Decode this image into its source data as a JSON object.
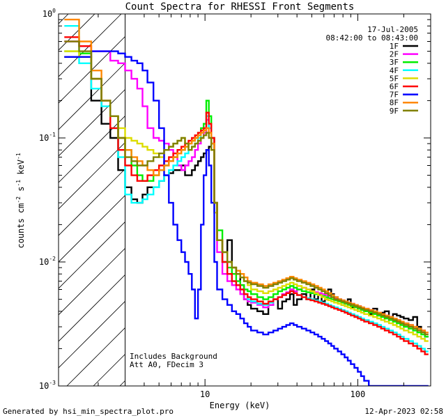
{
  "chart_data": {
    "type": "line",
    "title": "Count Spectra for RHESSI Front Segments",
    "xlabel": "Energy (keV)",
    "ylabel_parts": [
      "counts cm",
      "-2",
      " s",
      "-1",
      " keV",
      "-1"
    ],
    "x_scale": "log",
    "y_scale": "log",
    "xlim": [
      1.1,
      300
    ],
    "ylim": [
      0.001,
      1.0
    ],
    "x_tick_labels": [
      {
        "v": 10,
        "label": "10"
      },
      {
        "v": 100,
        "label": "100"
      }
    ],
    "y_tick_labels": [
      {
        "v": 1.0,
        "base": "10",
        "exp": "0"
      },
      {
        "v": 0.1,
        "base": "10",
        "exp": "-1"
      },
      {
        "v": 0.01,
        "base": "10",
        "exp": "-2"
      },
      {
        "v": 0.001,
        "base": "10",
        "exp": "-3"
      }
    ],
    "hatch_until_kev": 3.0,
    "date": "17-Jul-2005",
    "time_range": "08:42:00 to 08:43:00",
    "annotations": [
      "Includes Background",
      "Att A0, FDecim 3"
    ],
    "energy_bins": [
      1.2,
      1.5,
      1.8,
      2.1,
      2.4,
      2.7,
      3.0,
      3.3,
      3.6,
      3.9,
      4.2,
      4.6,
      5.0,
      5.4,
      5.8,
      6.2,
      6.6,
      7.0,
      7.4,
      7.8,
      8.2,
      8.6,
      9.0,
      9.4,
      9.8,
      10.2,
      10.6,
      11.0,
      11.5,
      12.0,
      13,
      14,
      15,
      16,
      17,
      18,
      19,
      20,
      22,
      24,
      26,
      28,
      30,
      32,
      34,
      36,
      38,
      40,
      43,
      46,
      49,
      52,
      55,
      58,
      61,
      64,
      67,
      70,
      74,
      78,
      82,
      86,
      90,
      95,
      100,
      105,
      110,
      118,
      126,
      134,
      142,
      150,
      160,
      170,
      180,
      190,
      200,
      215,
      230,
      245,
      260,
      275,
      290
    ],
    "series": [
      {
        "name": "1F",
        "color": "#000000",
        "values": [
          0.45,
          0.45,
          0.2,
          0.13,
          0.1,
          0.055,
          0.04,
          0.032,
          0.03,
          0.035,
          0.04,
          0.04,
          0.045,
          0.05,
          0.052,
          0.055,
          0.055,
          0.06,
          0.05,
          0.05,
          0.055,
          0.06,
          0.065,
          0.07,
          0.075,
          0.08,
          0.085,
          0.09,
          0.03,
          0.015,
          0.01,
          0.015,
          0.009,
          0.008,
          0.0065,
          0.005,
          0.0045,
          0.0042,
          0.004,
          0.0038,
          0.0045,
          0.005,
          0.0042,
          0.0048,
          0.005,
          0.0055,
          0.0045,
          0.005,
          0.0055,
          0.005,
          0.006,
          0.005,
          0.0055,
          0.0048,
          0.005,
          0.006,
          0.0055,
          0.0052,
          0.005,
          0.0045,
          0.0048,
          0.005,
          0.0043,
          0.0045,
          0.004,
          0.0042,
          0.004,
          0.0038,
          0.0042,
          0.0037,
          0.0039,
          0.004,
          0.0036,
          0.0038,
          0.0037,
          0.0036,
          0.0035,
          0.0034,
          0.0036,
          0.003,
          0.0028,
          0.0025,
          0.0022
        ]
      },
      {
        "name": "2F",
        "color": "#ff00ff",
        "values": [
          0.6,
          0.55,
          0.5,
          0.5,
          0.42,
          0.4,
          0.35,
          0.3,
          0.25,
          0.18,
          0.12,
          0.1,
          0.095,
          0.09,
          0.08,
          0.07,
          0.06,
          0.055,
          0.06,
          0.065,
          0.07,
          0.08,
          0.09,
          0.1,
          0.11,
          0.14,
          0.12,
          0.1,
          0.025,
          0.012,
          0.008,
          0.007,
          0.0065,
          0.006,
          0.0055,
          0.005,
          0.0048,
          0.0047,
          0.0045,
          0.0043,
          0.0045,
          0.005,
          0.0052,
          0.0055,
          0.0057,
          0.006,
          0.0058,
          0.006,
          0.0062,
          0.006,
          0.0058,
          0.0057,
          0.0056,
          0.0055,
          0.0054,
          0.0053,
          0.0052,
          0.0051,
          0.005,
          0.0049,
          0.0048,
          0.0047,
          0.0046,
          0.0045,
          0.0044,
          0.0043,
          0.0042,
          0.0041,
          0.004,
          0.0039,
          0.0038,
          0.0037,
          0.0036,
          0.0035,
          0.0034,
          0.0033,
          0.0032,
          0.0031,
          0.003,
          0.0029,
          0.0028,
          0.0027,
          0.0026
        ]
      },
      {
        "name": "3F",
        "color": "#00ee00",
        "values": [
          0.5,
          0.48,
          0.3,
          0.2,
          0.15,
          0.1,
          0.08,
          0.06,
          0.05,
          0.045,
          0.045,
          0.05,
          0.055,
          0.06,
          0.065,
          0.07,
          0.075,
          0.08,
          0.085,
          0.09,
          0.095,
          0.1,
          0.11,
          0.12,
          0.13,
          0.2,
          0.15,
          0.1,
          0.03,
          0.018,
          0.012,
          0.009,
          0.008,
          0.007,
          0.0065,
          0.006,
          0.0058,
          0.0055,
          0.0052,
          0.005,
          0.0052,
          0.0055,
          0.0058,
          0.006,
          0.0062,
          0.0064,
          0.0062,
          0.006,
          0.0058,
          0.0057,
          0.0056,
          0.0055,
          0.0054,
          0.0053,
          0.0052,
          0.0051,
          0.005,
          0.0049,
          0.0048,
          0.0047,
          0.0046,
          0.0045,
          0.0044,
          0.0043,
          0.0042,
          0.0041,
          0.004,
          0.0039,
          0.0038,
          0.0037,
          0.0036,
          0.0035,
          0.0034,
          0.0033,
          0.0032,
          0.0031,
          0.003,
          0.0029,
          0.0028,
          0.0027,
          0.0026,
          0.0025,
          0.0024
        ]
      },
      {
        "name": "4F",
        "color": "#00ffff",
        "values": [
          0.8,
          0.4,
          0.25,
          0.18,
          0.12,
          0.07,
          0.035,
          0.03,
          0.03,
          0.032,
          0.035,
          0.04,
          0.045,
          0.05,
          0.055,
          0.06,
          0.065,
          0.07,
          0.075,
          0.08,
          0.085,
          0.09,
          0.1,
          0.11,
          0.12,
          0.15,
          0.12,
          0.09,
          0.025,
          0.015,
          0.01,
          0.008,
          0.007,
          0.0065,
          0.006,
          0.0055,
          0.005,
          0.0048,
          0.0046,
          0.0045,
          0.0047,
          0.005,
          0.0052,
          0.0054,
          0.0056,
          0.0058,
          0.0056,
          0.0054,
          0.0052,
          0.0051,
          0.005,
          0.0049,
          0.0048,
          0.0047,
          0.0046,
          0.0045,
          0.0044,
          0.0043,
          0.0042,
          0.0041,
          0.004,
          0.0039,
          0.0038,
          0.0037,
          0.0036,
          0.0035,
          0.0034,
          0.0033,
          0.0032,
          0.0031,
          0.003,
          0.0029,
          0.0028,
          0.0027,
          0.0026,
          0.0025,
          0.0024,
          0.0023,
          0.0022,
          0.0021,
          0.002,
          0.0019,
          0.0018
        ]
      },
      {
        "name": "5F",
        "color": "#dddd00",
        "values": [
          0.5,
          0.45,
          0.3,
          0.2,
          0.15,
          0.12,
          0.1,
          0.095,
          0.09,
          0.085,
          0.08,
          0.075,
          0.07,
          0.08,
          0.085,
          0.09,
          0.095,
          0.1,
          0.09,
          0.08,
          0.085,
          0.09,
          0.095,
          0.1,
          0.105,
          0.11,
          0.1,
          0.08,
          0.025,
          0.015,
          0.012,
          0.01,
          0.009,
          0.008,
          0.0075,
          0.007,
          0.0065,
          0.006,
          0.0058,
          0.0056,
          0.0058,
          0.006,
          0.0062,
          0.0064,
          0.0066,
          0.0068,
          0.0066,
          0.0064,
          0.0062,
          0.006,
          0.0058,
          0.0056,
          0.0054,
          0.0052,
          0.005,
          0.0049,
          0.0048,
          0.0047,
          0.0046,
          0.0045,
          0.0044,
          0.0043,
          0.0042,
          0.0041,
          0.004,
          0.0039,
          0.0038,
          0.0037,
          0.0036,
          0.0035,
          0.0034,
          0.0033,
          0.0032,
          0.0031,
          0.003,
          0.0029,
          0.0028,
          0.0027,
          0.0026,
          0.0025,
          0.0024,
          0.0023,
          0.0022
        ]
      },
      {
        "name": "6F",
        "color": "#ff0000",
        "values": [
          0.65,
          0.55,
          0.3,
          0.2,
          0.12,
          0.08,
          0.06,
          0.05,
          0.045,
          0.045,
          0.05,
          0.055,
          0.06,
          0.065,
          0.07,
          0.075,
          0.08,
          0.085,
          0.09,
          0.095,
          0.1,
          0.105,
          0.11,
          0.115,
          0.12,
          0.16,
          0.13,
          0.1,
          0.03,
          0.015,
          0.01,
          0.008,
          0.007,
          0.0065,
          0.006,
          0.0055,
          0.0052,
          0.005,
          0.0048,
          0.0046,
          0.0048,
          0.005,
          0.0052,
          0.0054,
          0.0056,
          0.0058,
          0.0056,
          0.0054,
          0.0052,
          0.005,
          0.0049,
          0.0048,
          0.0047,
          0.0046,
          0.0045,
          0.0044,
          0.0043,
          0.0042,
          0.0041,
          0.004,
          0.0039,
          0.0038,
          0.0037,
          0.0036,
          0.0035,
          0.0034,
          0.0033,
          0.0032,
          0.0031,
          0.003,
          0.0029,
          0.0028,
          0.0027,
          0.0026,
          0.0025,
          0.0024,
          0.0023,
          0.0022,
          0.0021,
          0.002,
          0.0019,
          0.0018,
          0.0017
        ]
      },
      {
        "name": "7F",
        "color": "#0000ff",
        "values": [
          0.45,
          0.45,
          0.5,
          0.5,
          0.5,
          0.48,
          0.45,
          0.42,
          0.4,
          0.35,
          0.28,
          0.2,
          0.12,
          0.05,
          0.03,
          0.02,
          0.015,
          0.012,
          0.01,
          0.008,
          0.006,
          0.0035,
          0.006,
          0.02,
          0.05,
          0.08,
          0.06,
          0.03,
          0.01,
          0.006,
          0.005,
          0.0045,
          0.004,
          0.0038,
          0.0035,
          0.0032,
          0.003,
          0.0028,
          0.0027,
          0.0026,
          0.0027,
          0.0028,
          0.0029,
          0.003,
          0.0031,
          0.0032,
          0.0031,
          0.003,
          0.0029,
          0.0028,
          0.0027,
          0.0026,
          0.0025,
          0.0024,
          0.0023,
          0.0022,
          0.0021,
          0.002,
          0.0019,
          0.0018,
          0.0017,
          0.0016,
          0.0015,
          0.0014,
          0.0013,
          0.0012,
          0.0011,
          0.001,
          0.001,
          0.001,
          0.001,
          0.001,
          0.001,
          0.001,
          0.001,
          0.001,
          0.001,
          0.001,
          0.001,
          0.001,
          0.001,
          0.001,
          0.001
        ]
      },
      {
        "name": "8F",
        "color": "#ff8800",
        "values": [
          0.9,
          0.6,
          0.35,
          0.2,
          0.15,
          0.1,
          0.08,
          0.07,
          0.065,
          0.06,
          0.055,
          0.05,
          0.055,
          0.06,
          0.065,
          0.07,
          0.075,
          0.08,
          0.085,
          0.09,
          0.095,
          0.1,
          0.105,
          0.11,
          0.115,
          0.12,
          0.11,
          0.09,
          0.03,
          0.015,
          0.012,
          0.01,
          0.009,
          0.0085,
          0.008,
          0.0075,
          0.007,
          0.0068,
          0.0066,
          0.0064,
          0.0066,
          0.0068,
          0.007,
          0.0072,
          0.0074,
          0.0076,
          0.0074,
          0.0072,
          0.007,
          0.0068,
          0.0066,
          0.0064,
          0.0062,
          0.006,
          0.0058,
          0.0056,
          0.0054,
          0.0052,
          0.005,
          0.0049,
          0.0048,
          0.0047,
          0.0046,
          0.0045,
          0.0044,
          0.0043,
          0.0042,
          0.0041,
          0.004,
          0.0039,
          0.0038,
          0.0037,
          0.0036,
          0.0035,
          0.0034,
          0.0033,
          0.0032,
          0.0031,
          0.003,
          0.0029,
          0.0028,
          0.0027,
          0.0026
        ]
      },
      {
        "name": "9F",
        "color": "#808000",
        "values": [
          0.6,
          0.5,
          0.3,
          0.2,
          0.15,
          0.1,
          0.07,
          0.065,
          0.06,
          0.06,
          0.065,
          0.07,
          0.075,
          0.08,
          0.085,
          0.09,
          0.095,
          0.1,
          0.09,
          0.08,
          0.085,
          0.09,
          0.095,
          0.1,
          0.105,
          0.11,
          0.1,
          0.08,
          0.03,
          0.015,
          0.012,
          0.01,
          0.009,
          0.008,
          0.0075,
          0.007,
          0.0068,
          0.0066,
          0.0064,
          0.0062,
          0.0064,
          0.0066,
          0.0068,
          0.007,
          0.0072,
          0.0074,
          0.0072,
          0.007,
          0.0068,
          0.0066,
          0.0064,
          0.0062,
          0.006,
          0.0058,
          0.0056,
          0.0054,
          0.0052,
          0.005,
          0.0049,
          0.0048,
          0.0047,
          0.0046,
          0.0045,
          0.0044,
          0.0043,
          0.0042,
          0.0041,
          0.004,
          0.0039,
          0.0038,
          0.0037,
          0.0036,
          0.0035,
          0.0034,
          0.0033,
          0.0032,
          0.0031,
          0.003,
          0.0029,
          0.0028,
          0.0027,
          0.0026,
          0.0025
        ]
      }
    ]
  },
  "footer": {
    "generated_by": "Generated by hsi_min_spectra_plot.pro",
    "timestamp": "12-Apr-2023 02:58"
  }
}
